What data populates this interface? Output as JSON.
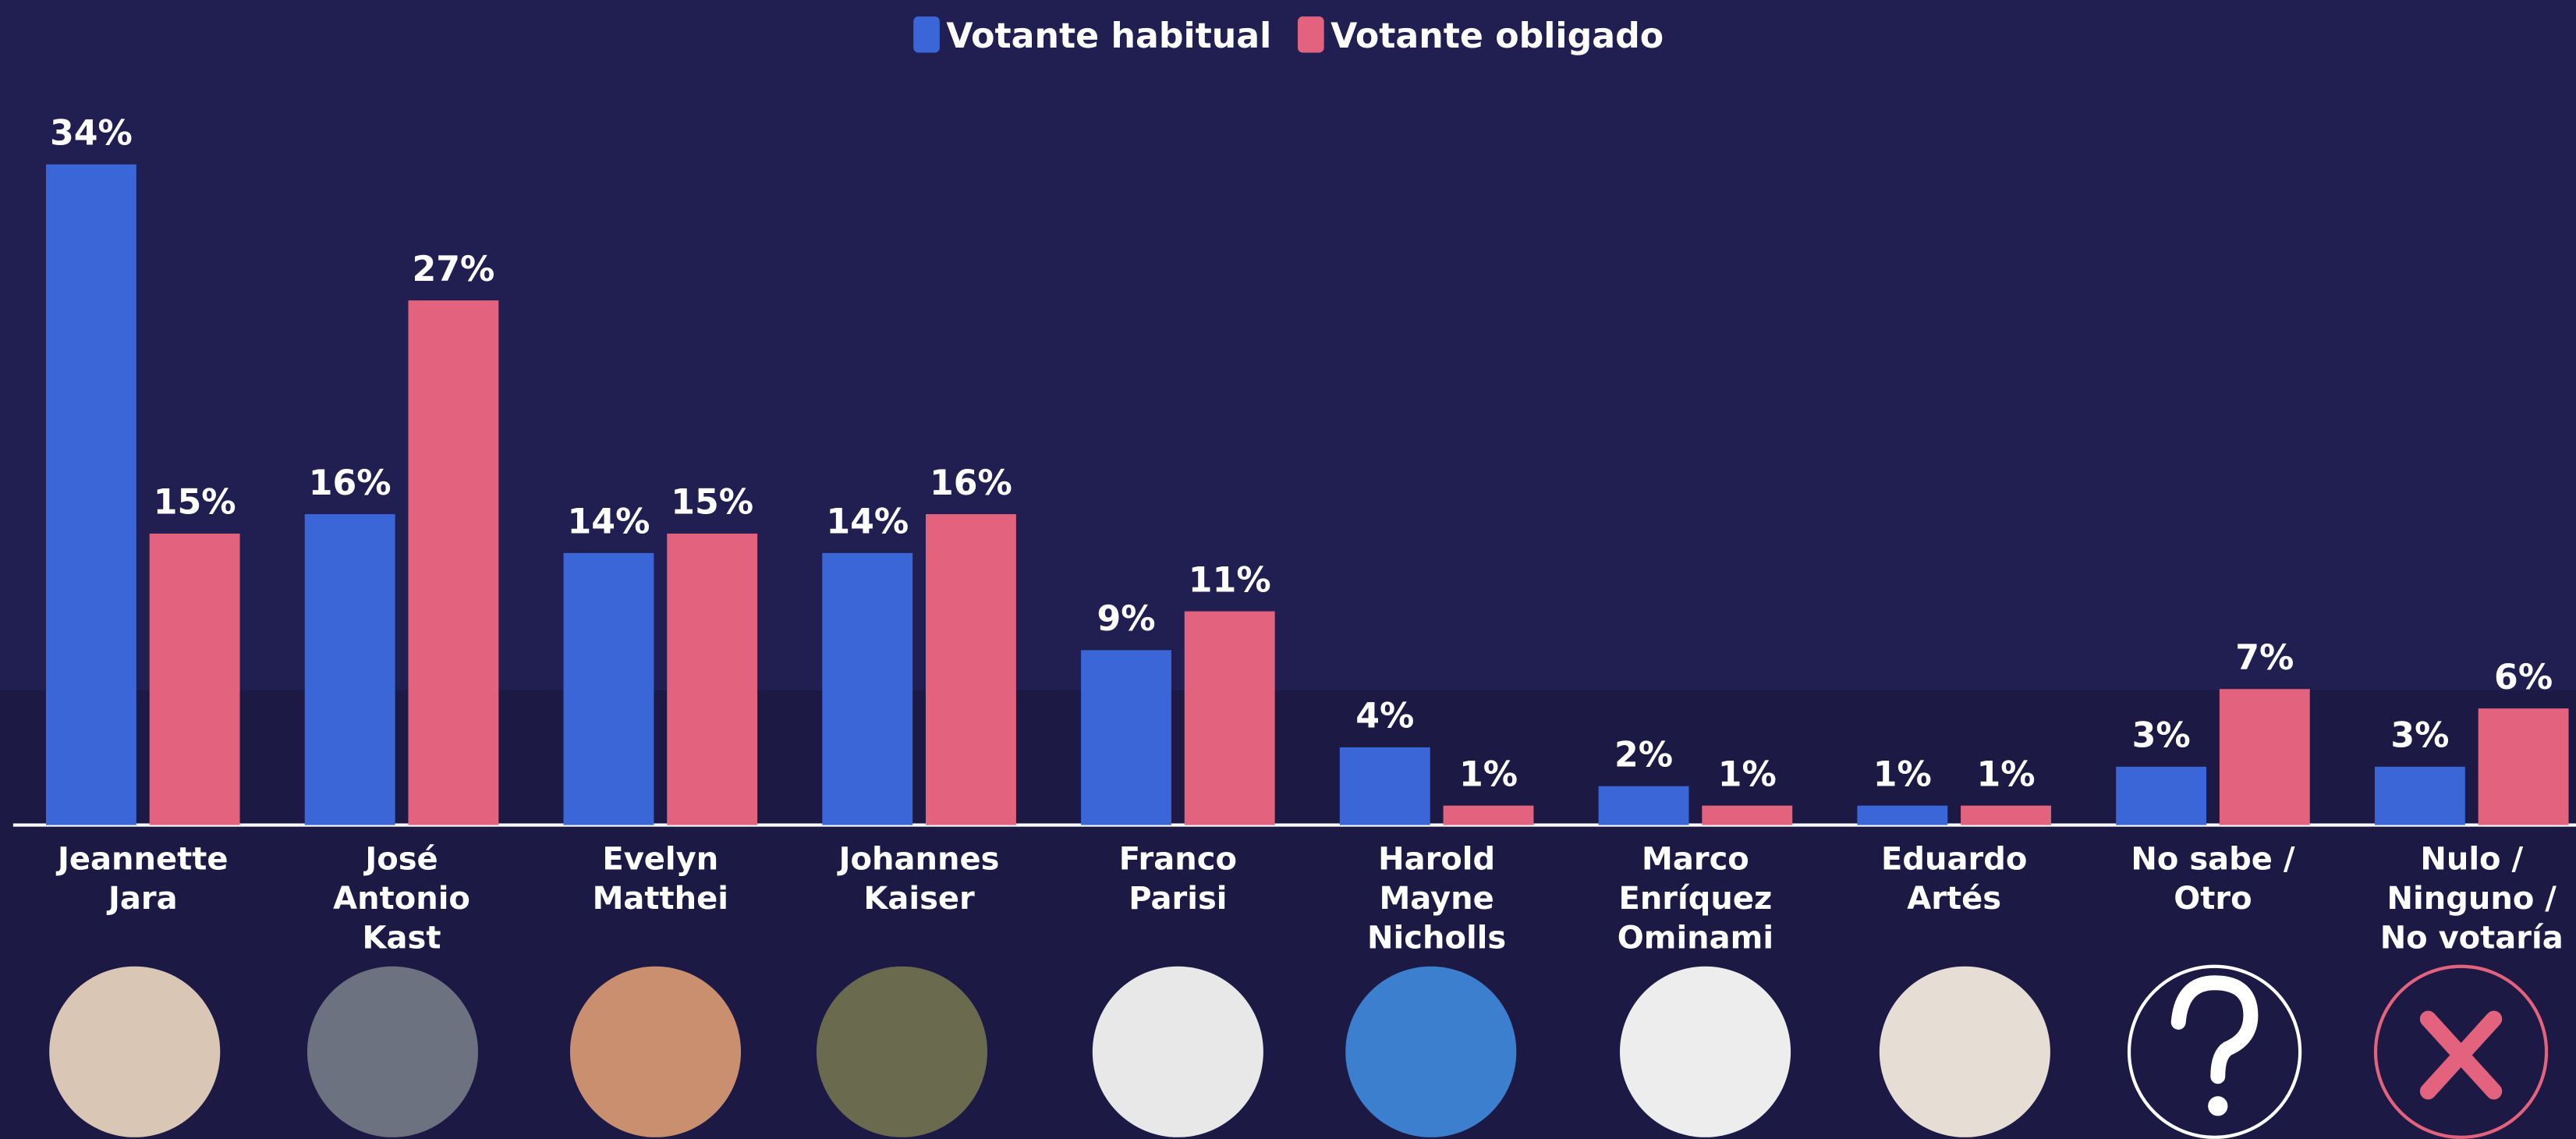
{
  "chart_data": {
    "type": "bar",
    "categories": [
      "Jeannette\nJara",
      "José\nAntonio\nKast",
      "Evelyn\nMatthei",
      "Johannes\nKaiser",
      "Franco\nParisi",
      "Harold\nMayne\nNicholls",
      "Marco\nEnríquez\nOminami",
      "Eduardo\nArtés",
      "No sabe /\nOtro",
      "Nulo /\nNinguno /\nNo votaría"
    ],
    "series": [
      {
        "name": "Votante habitual",
        "color": "#3b66d8",
        "values": [
          34,
          16,
          14,
          14,
          9,
          4,
          2,
          1,
          3,
          3
        ],
        "value_labels": [
          "34%",
          "16%",
          "14%",
          "14%",
          "9%",
          "4%",
          "2%",
          "1%",
          "3%",
          "3%"
        ]
      },
      {
        "name": "Votante obligado",
        "color": "#e3637f",
        "values": [
          15,
          27,
          15,
          16,
          11,
          1,
          1,
          1,
          7,
          6
        ],
        "value_labels": [
          "15%",
          "27%",
          "15%",
          "16%",
          "11%",
          "1%",
          "1%",
          "1%",
          "7%",
          "6%"
        ]
      }
    ]
  }
}
